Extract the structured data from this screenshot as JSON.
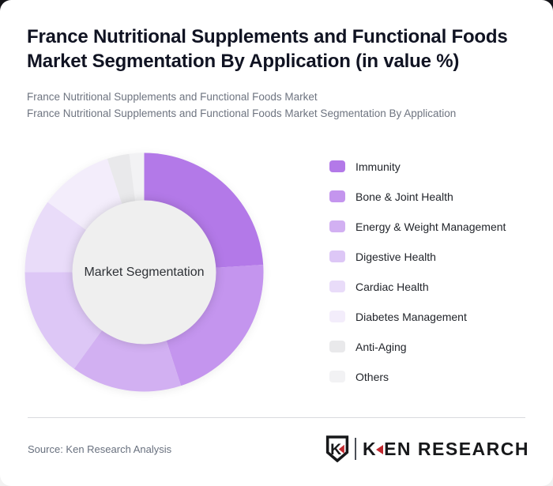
{
  "header": {
    "title": "France Nutritional Supplements and Functional Foods Market Segmentation By Application (in value %)",
    "subtitle_line1": "France Nutritional Supplements and Functional Foods Market",
    "subtitle_line2": "France Nutritional Supplements and Functional Foods Market Segmentation By Application"
  },
  "chart_data": {
    "type": "pie",
    "donut": true,
    "title": "France Nutritional Supplements and Functional Foods Market Segmentation By Application (in value %)",
    "center_label": "Market Segmentation",
    "unit": "%",
    "legend_position": "right",
    "categories": [
      "Immunity",
      "Bone & Joint Health",
      "Energy & Weight Management",
      "Digestive Health",
      "Cardiac Health",
      "Diabetes Management",
      "Anti-Aging",
      "Others"
    ],
    "values": [
      24,
      21,
      15,
      15,
      10,
      10,
      3,
      2
    ],
    "colors": [
      "#b379e8",
      "#c495ee",
      "#d2b0f2",
      "#ddc7f6",
      "#e9dcf9",
      "#f3edfb",
      "#e9e9eb",
      "#f2f2f4"
    ],
    "hole_color": "#efefef"
  },
  "footer": {
    "source": "Source: Ken Research Analysis",
    "shield_letter": "K",
    "logo_k": "K",
    "logo_rest": "EN RESEARCH",
    "logo_red": "#c1272d"
  }
}
